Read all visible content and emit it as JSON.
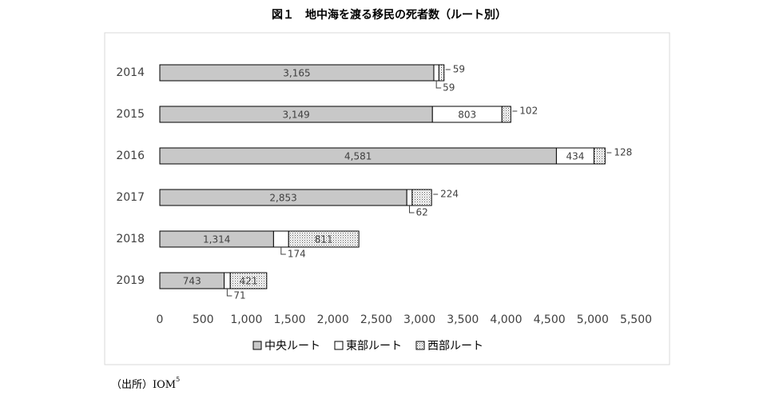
{
  "chart_data": {
    "type": "stacked-barh",
    "title": "図１　地中海を渡る移民の死者数（ルート別）",
    "source": "（出所）IOM",
    "source_note": "5",
    "categories": [
      "2014",
      "2015",
      "2016",
      "2017",
      "2018",
      "2019"
    ],
    "series": [
      {
        "name": "中央ルート",
        "color": "#c8c8c8",
        "values": [
          3165,
          3149,
          4581,
          2853,
          1314,
          743
        ],
        "value_labels": [
          "3,165",
          "3,149",
          "4,581",
          "2,853",
          "1,314",
          "743"
        ]
      },
      {
        "name": "東部ルート",
        "color": "#ffffff",
        "values": [
          59,
          803,
          434,
          62,
          174,
          71
        ],
        "value_labels": [
          "59",
          "803",
          "434",
          "62",
          "174",
          "71"
        ]
      },
      {
        "name": "西部ルート",
        "color": "#ffffff",
        "pattern": "dots",
        "values": [
          59,
          102,
          128,
          224,
          811,
          421
        ],
        "value_labels": [
          "59",
          "102",
          "128",
          "224",
          "811",
          "421"
        ]
      }
    ],
    "xlim": [
      0,
      5500
    ],
    "xticks": [
      0,
      500,
      {
        "value": 1000,
        "label": "1,000"
      },
      {
        "value": 1500,
        "label": "1,500"
      },
      {
        "value": 2000,
        "label": "2,000"
      },
      {
        "value": 2500,
        "label": "2,500"
      },
      {
        "value": 3000,
        "label": "3,000"
      },
      {
        "value": 3500,
        "label": "3,500"
      },
      {
        "value": 4000,
        "label": "4,000"
      },
      {
        "value": 4500,
        "label": "4,500"
      },
      {
        "value": 5000,
        "label": "5,000"
      },
      {
        "value": 5500,
        "label": "5,500"
      }
    ],
    "legend": "bottom"
  }
}
